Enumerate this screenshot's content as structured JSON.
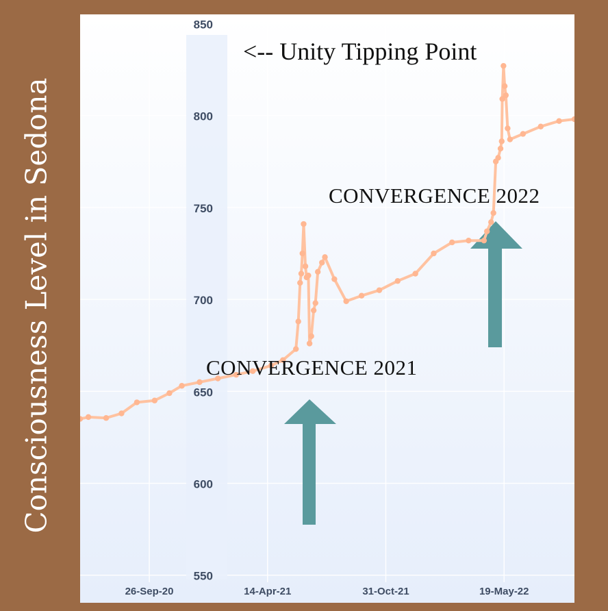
{
  "y_axis_title": "Consciousness Level in Sedona",
  "chart_data": {
    "type": "line",
    "ylabel": "Consciousness Level in Sedona",
    "ylim": [
      535,
      855
    ],
    "yticks": [
      550,
      600,
      650,
      700,
      750,
      800,
      850
    ],
    "xticks": [
      {
        "date": "2020-09-26",
        "label": "26-Sep-20"
      },
      {
        "date": "2021-04-14",
        "label": "14-Apr-21"
      },
      {
        "date": "2021-10-31",
        "label": "31-Oct-21"
      },
      {
        "date": "2022-05-19",
        "label": "19-May-22"
      }
    ],
    "xlim": [
      "2020-06-01",
      "2022-09-15"
    ],
    "grid": true,
    "color": "#FFC2A0",
    "points": [
      [
        "2020-06-01",
        635
      ],
      [
        "2020-06-15",
        636
      ],
      [
        "2020-07-15",
        635.5
      ],
      [
        "2020-08-10",
        638
      ],
      [
        "2020-09-05",
        644
      ],
      [
        "2020-10-05",
        645
      ],
      [
        "2020-10-30",
        649
      ],
      [
        "2020-11-20",
        653
      ],
      [
        "2020-12-20",
        655
      ],
      [
        "2021-01-20",
        657
      ],
      [
        "2021-02-20",
        659
      ],
      [
        "2021-03-20",
        661
      ],
      [
        "2021-04-20",
        664
      ],
      [
        "2021-05-10",
        667
      ],
      [
        "2021-06-01",
        673
      ],
      [
        "2021-06-05",
        688
      ],
      [
        "2021-06-08",
        709
      ],
      [
        "2021-06-10",
        714
      ],
      [
        "2021-06-12",
        725
      ],
      [
        "2021-06-14",
        741
      ],
      [
        "2021-06-17",
        718
      ],
      [
        "2021-06-19",
        712
      ],
      [
        "2021-06-22",
        713
      ],
      [
        "2021-06-24",
        676
      ],
      [
        "2021-06-27",
        680
      ],
      [
        "2021-07-01",
        694
      ],
      [
        "2021-07-04",
        698
      ],
      [
        "2021-07-08",
        715
      ],
      [
        "2021-07-15",
        720
      ],
      [
        "2021-07-20",
        723
      ],
      [
        "2021-08-05",
        711
      ],
      [
        "2021-08-25",
        699
      ],
      [
        "2021-09-20",
        702
      ],
      [
        "2021-10-20",
        705
      ],
      [
        "2021-11-20",
        710
      ],
      [
        "2021-12-20",
        714
      ],
      [
        "2022-01-20",
        725
      ],
      [
        "2022-02-20",
        731
      ],
      [
        "2022-03-20",
        732
      ],
      [
        "2022-04-15",
        732
      ],
      [
        "2022-04-20",
        737
      ],
      [
        "2022-04-27",
        742
      ],
      [
        "2022-05-01",
        747
      ],
      [
        "2022-05-05",
        775
      ],
      [
        "2022-05-09",
        777
      ],
      [
        "2022-05-13",
        782
      ],
      [
        "2022-05-15",
        786
      ],
      [
        "2022-05-16",
        809
      ],
      [
        "2022-05-18",
        827
      ],
      [
        "2022-05-20",
        816
      ],
      [
        "2022-05-22",
        811
      ],
      [
        "2022-05-25",
        793
      ],
      [
        "2022-05-29",
        787
      ],
      [
        "2022-06-20",
        790
      ],
      [
        "2022-07-20",
        794
      ],
      [
        "2022-08-20",
        797
      ],
      [
        "2022-09-15",
        798
      ]
    ]
  },
  "annotations": {
    "tipping_point": "<-- Unity Tipping Point",
    "convergence_2021": "CONVERGENCE 2021",
    "convergence_2022": "CONVERGENCE 2022"
  },
  "arrow_color": "#5A9A9D"
}
